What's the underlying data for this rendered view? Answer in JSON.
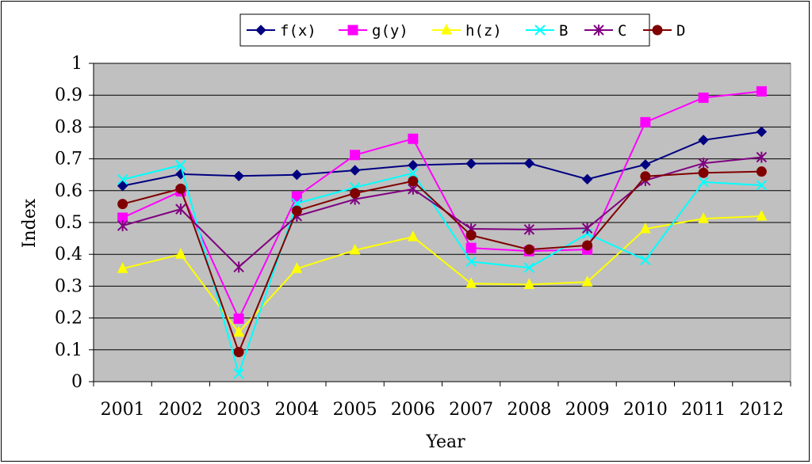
{
  "chart_data": {
    "type": "line",
    "title": "",
    "xlabel": "Year",
    "ylabel": "Index",
    "ylim": [
      0,
      1
    ],
    "yticks": [
      "0",
      "0.1",
      "0.2",
      "0.3",
      "0.4",
      "0.5",
      "0.6",
      "0.7",
      "0.8",
      "0.9",
      "1"
    ],
    "categories": [
      "2001",
      "2002",
      "2003",
      "2004",
      "2005",
      "2006",
      "2007",
      "2008",
      "2009",
      "2010",
      "2011",
      "2012"
    ],
    "grid": "horizontal",
    "legend_position": "top",
    "plot_background": "#c0c0c0",
    "series": [
      {
        "name": "f(x)",
        "color": "#000080",
        "marker": "diamond",
        "values": [
          0.615,
          0.652,
          0.646,
          0.65,
          0.664,
          0.68,
          0.685,
          0.686,
          0.636,
          0.682,
          0.759,
          0.785
        ]
      },
      {
        "name": "g(y)",
        "color": "#ff00ff",
        "marker": "square",
        "values": [
          0.515,
          0.598,
          0.198,
          0.582,
          0.712,
          0.763,
          0.42,
          0.41,
          0.415,
          0.815,
          0.892,
          0.912
        ]
      },
      {
        "name": "h(z)",
        "color": "#ffff00",
        "marker": "triangle",
        "values": [
          0.355,
          0.4,
          0.155,
          0.355,
          0.413,
          0.455,
          0.308,
          0.305,
          0.313,
          0.48,
          0.512,
          0.52
        ]
      },
      {
        "name": "B",
        "color": "#00ffff",
        "marker": "x",
        "values": [
          0.635,
          0.68,
          0.025,
          0.56,
          0.61,
          0.655,
          0.377,
          0.358,
          0.465,
          0.382,
          0.627,
          0.617
        ]
      },
      {
        "name": "C",
        "color": "#800080",
        "marker": "star",
        "values": [
          0.49,
          0.542,
          0.36,
          0.52,
          0.573,
          0.605,
          0.48,
          0.478,
          0.482,
          0.632,
          0.686,
          0.705
        ]
      },
      {
        "name": "D",
        "color": "#800000",
        "marker": "circle",
        "values": [
          0.558,
          0.606,
          0.093,
          0.537,
          0.592,
          0.63,
          0.46,
          0.415,
          0.428,
          0.645,
          0.656,
          0.66
        ]
      }
    ]
  }
}
